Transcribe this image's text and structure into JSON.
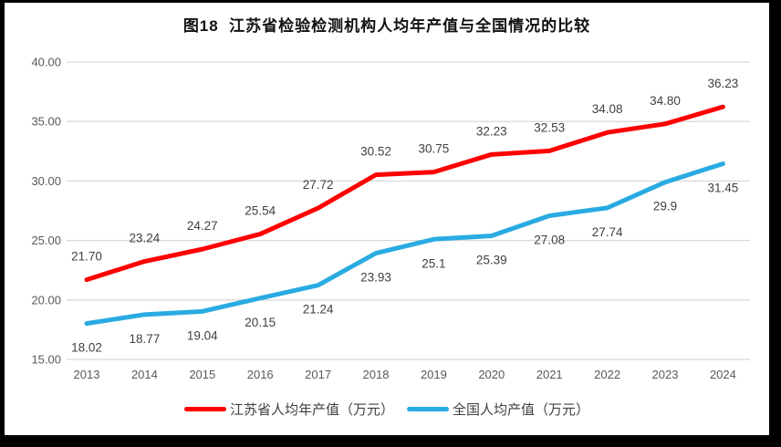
{
  "title": "图18  江苏省检验检测机构人均年产值与全国情况的比较",
  "colors": {
    "jiangsu_line": "#fe0000",
    "national_line": "#29abe2",
    "gridline": "#d9d9d9",
    "axis_text": "#595959",
    "data_label_text": "#404040",
    "frame_border": "#000000",
    "panel_background": "#ffffff"
  },
  "chart_data": {
    "type": "line",
    "title": "图18  江苏省检验检测机构人均年产值与全国情况的比较",
    "categories": [
      "2013",
      "2014",
      "2015",
      "2016",
      "2017",
      "2018",
      "2019",
      "2020",
      "2021",
      "2022",
      "2023",
      "2024"
    ],
    "series": [
      {
        "name": "江苏省人均年产值（万元）",
        "color": "#fe0000",
        "values": [
          21.7,
          23.24,
          24.27,
          25.54,
          27.72,
          30.52,
          30.75,
          32.23,
          32.53,
          34.08,
          34.8,
          36.23
        ],
        "labels": [
          "21.70",
          "23.24",
          "24.27",
          "25.54",
          "27.72",
          "30.52",
          "30.75",
          "32.23",
          "32.53",
          "34.08",
          "34.80",
          "36.23"
        ],
        "label_position": "above"
      },
      {
        "name": "全国人均产值（万元）",
        "color": "#29abe2",
        "values": [
          18.02,
          18.77,
          19.04,
          20.15,
          21.24,
          23.93,
          25.1,
          25.39,
          27.08,
          27.74,
          29.9,
          31.45
        ],
        "labels": [
          "18.02",
          "18.77",
          "19.04",
          "20.15",
          "21.24",
          "23.93",
          "25.1",
          "25.39",
          "27.08",
          "27.74",
          "29.9",
          "31.45"
        ],
        "label_position": "below"
      }
    ],
    "xlabel": "",
    "ylabel": "",
    "ylim": [
      15,
      40
    ],
    "yticks": [
      "40.00",
      "35.00",
      "30.00",
      "25.00",
      "20.00",
      "15.00"
    ],
    "grid": true,
    "legend_position": "bottom",
    "markers": false
  }
}
